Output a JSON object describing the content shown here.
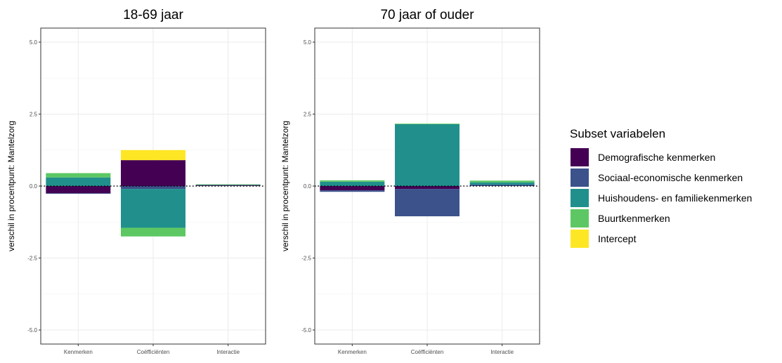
{
  "chart_data": {
    "type": "bar",
    "stacked": true,
    "ylabel": "verschil in procentpunt: Mantelzorg",
    "ylim": [
      -5.0,
      5.0
    ],
    "yticks": [
      "5.0",
      "2.5",
      "0.0",
      "-2.5",
      "-5.0"
    ],
    "ytick_values": [
      5.0,
      2.5,
      0.0,
      -2.5,
      -5.0
    ],
    "categories": [
      "Kenmerken",
      "Coëfficiënten",
      "Interactie"
    ],
    "grid": true,
    "zero_line": "dotted",
    "legend": {
      "title": "Subset variabelen",
      "placement": "right",
      "items": [
        {
          "name": "Demografische kenmerken",
          "color": "#440154"
        },
        {
          "name": "Sociaal-economische kenmerken",
          "color": "#3b528b"
        },
        {
          "name": "Huishoudens- en familiekenmerken",
          "color": "#21908c"
        },
        {
          "name": "Buurtkenmerken",
          "color": "#5dc863"
        },
        {
          "name": "Intercept",
          "color": "#fde725"
        }
      ]
    },
    "panels": [
      {
        "title": "18-69 jaar",
        "series": [
          {
            "name": "Demografische kenmerken",
            "values": [
              -0.25,
              0.9,
              0.02
            ]
          },
          {
            "name": "Sociaal-economische kenmerken",
            "values": [
              -0.02,
              -0.1,
              0.03
            ]
          },
          {
            "name": "Huishoudens- en familiekenmerken",
            "values": [
              0.3,
              -1.35,
              0.0
            ]
          },
          {
            "name": "Buurtkenmerken",
            "values": [
              0.15,
              -0.3,
              0.01
            ]
          },
          {
            "name": "Intercept",
            "values": [
              0.0,
              0.35,
              0.0
            ]
          }
        ]
      },
      {
        "title": "70 jaar of ouder",
        "series": [
          {
            "name": "Demografische kenmerken",
            "values": [
              -0.15,
              -0.1,
              0.0
            ]
          },
          {
            "name": "Sociaal-economische kenmerken",
            "values": [
              -0.05,
              -0.95,
              0.05
            ]
          },
          {
            "name": "Huishoudens- en familiekenmerken",
            "values": [
              0.15,
              2.15,
              0.08
            ]
          },
          {
            "name": "Buurtkenmerken",
            "values": [
              0.05,
              0.02,
              0.06
            ]
          },
          {
            "name": "Intercept",
            "values": [
              0.0,
              0.0,
              0.0
            ]
          }
        ]
      }
    ]
  }
}
